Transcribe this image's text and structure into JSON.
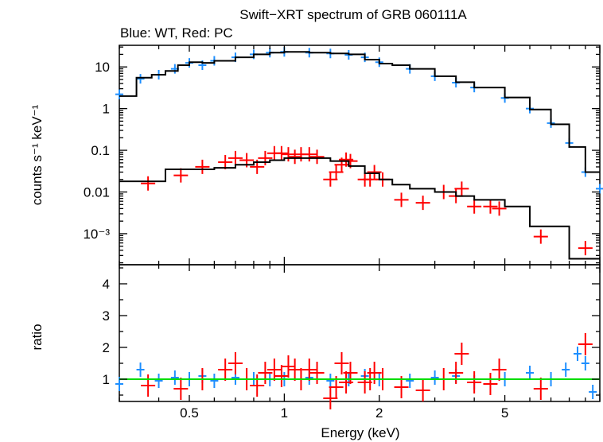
{
  "chart_data": [
    {
      "type": "scatter",
      "panel": "spectrum",
      "title": "Swift−XRT spectrum of GRB 060111A",
      "subtitle": "Blue: WT, Red: PC",
      "xlabel": "",
      "ylabel": "counts s⁻¹ keV⁻¹",
      "x_scale": "log",
      "y_scale": "log",
      "xlim": [
        0.3,
        10
      ],
      "ylim": [
        0.00018,
        33
      ],
      "x_ticks": [
        0.5,
        1,
        2,
        5
      ],
      "y_ticks": [
        {
          "value": 10,
          "label": "10"
        },
        {
          "value": 1,
          "label": "1"
        },
        {
          "value": 0.1,
          "label": "0.1"
        },
        {
          "value": 0.01,
          "label": "0.01"
        },
        {
          "value": 0.001,
          "label": "10⁻³"
        }
      ],
      "series": [
        {
          "color": "#1e8fff",
          "x": [
            0.3,
            0.35,
            0.4,
            0.45,
            0.5,
            0.55,
            0.6,
            0.7,
            0.8,
            0.9,
            1.0,
            1.2,
            1.4,
            1.6,
            1.8,
            2.0,
            2.5,
            3.0,
            3.5,
            4.0,
            5.0,
            6.0,
            7.0,
            8.0,
            9.0,
            10.0
          ],
          "y": [
            2.2,
            5.2,
            6.5,
            9.0,
            12.5,
            11.0,
            14.0,
            17.0,
            20.0,
            22.0,
            23.0,
            22.0,
            21.0,
            19.5,
            17.0,
            13.0,
            9.0,
            6.0,
            4.2,
            3.2,
            1.8,
            1.0,
            0.45,
            0.15,
            0.03,
            0.012
          ]
        },
        {
          "color": "#000000",
          "role": "model WT",
          "x": [
            0.3,
            0.34,
            0.38,
            0.42,
            0.46,
            0.5,
            0.55,
            0.6,
            0.7,
            0.8,
            0.9,
            1.0,
            1.2,
            1.4,
            1.6,
            1.8,
            2.0,
            2.2,
            2.5,
            3.0,
            3.5,
            4.0,
            5.0,
            6.0,
            7.0,
            8.0,
            9.0,
            10.0
          ],
          "y": [
            2.0,
            5.5,
            6.5,
            8.0,
            11.0,
            13.0,
            12.5,
            14.0,
            17.0,
            20.0,
            22.0,
            23.0,
            22.0,
            21.0,
            20.0,
            15.0,
            12.0,
            11.0,
            9.0,
            6.0,
            4.3,
            3.2,
            1.85,
            0.95,
            0.42,
            0.12,
            0.03,
            0.012
          ]
        },
        {
          "color": "#ff0000",
          "x": [
            0.37,
            0.47,
            0.55,
            0.65,
            0.7,
            0.76,
            0.82,
            0.87,
            0.93,
            0.98,
            1.03,
            1.08,
            1.13,
            1.2,
            1.27,
            1.4,
            1.46,
            1.52,
            1.57,
            1.62,
            1.8,
            1.87,
            1.93,
            2.05,
            2.35,
            2.75,
            3.2,
            3.5,
            3.65,
            4.0,
            4.5,
            4.8,
            6.5,
            9.0
          ],
          "y": [
            0.016,
            0.025,
            0.04,
            0.052,
            0.065,
            0.058,
            0.04,
            0.065,
            0.085,
            0.085,
            0.08,
            0.07,
            0.08,
            0.08,
            0.07,
            0.02,
            0.03,
            0.045,
            0.06,
            0.055,
            0.02,
            0.02,
            0.03,
            0.02,
            0.0065,
            0.0055,
            0.01,
            0.008,
            0.012,
            0.0045,
            0.0045,
            0.004,
            0.00085,
            0.00045
          ]
        },
        {
          "color": "#000000",
          "role": "model PC",
          "x": [
            0.3,
            0.4,
            0.42,
            0.5,
            0.6,
            0.7,
            0.8,
            0.9,
            1.0,
            1.2,
            1.4,
            1.6,
            1.8,
            2.0,
            2.2,
            2.5,
            3.0,
            3.5,
            4.0,
            5.0,
            6.0,
            8.0,
            10.0
          ],
          "y": [
            0.018,
            0.018,
            0.035,
            0.035,
            0.038,
            0.045,
            0.052,
            0.058,
            0.065,
            0.065,
            0.055,
            0.042,
            0.028,
            0.02,
            0.015,
            0.012,
            0.01,
            0.008,
            0.0065,
            0.0045,
            0.0015,
            0.00025,
            0.00025
          ]
        }
      ]
    },
    {
      "type": "scatter",
      "panel": "ratio",
      "xlabel": "Energy (keV)",
      "ylabel": "ratio",
      "x_scale": "log",
      "y_scale": "linear",
      "xlim": [
        0.3,
        10
      ],
      "ylim": [
        0.3,
        4.6
      ],
      "x_ticks": [
        {
          "value": 0.5,
          "label": "0.5"
        },
        {
          "value": 1,
          "label": "1"
        },
        {
          "value": 2,
          "label": "2"
        },
        {
          "value": 5,
          "label": "5"
        }
      ],
      "y_ticks": [
        1,
        2,
        3,
        4
      ],
      "reference_line": {
        "y": 1,
        "color": "#00dd00"
      },
      "series": [
        {
          "color": "#1e8fff",
          "x": [
            0.3,
            0.35,
            0.4,
            0.45,
            0.5,
            0.55,
            0.6,
            0.7,
            0.8,
            0.9,
            1.0,
            1.2,
            1.4,
            1.6,
            1.8,
            2.0,
            2.5,
            3.0,
            3.5,
            4.0,
            5.0,
            6.0,
            7.0,
            7.8,
            8.5,
            9.0,
            9.5
          ],
          "y": [
            0.85,
            1.3,
            0.95,
            1.05,
            1.0,
            1.1,
            0.95,
            1.05,
            1.0,
            1.0,
            1.0,
            1.05,
            0.95,
            1.0,
            1.1,
            1.0,
            0.95,
            1.05,
            1.1,
            0.9,
            1.0,
            1.2,
            1.0,
            1.3,
            1.8,
            1.5,
            0.6
          ]
        },
        {
          "color": "#ff0000",
          "x": [
            0.37,
            0.47,
            0.55,
            0.65,
            0.7,
            0.76,
            0.82,
            0.87,
            0.93,
            0.98,
            1.03,
            1.08,
            1.13,
            1.2,
            1.27,
            1.4,
            1.46,
            1.52,
            1.57,
            1.62,
            1.8,
            1.87,
            1.93,
            2.05,
            2.35,
            2.75,
            3.2,
            3.5,
            3.65,
            4.0,
            4.5,
            4.8,
            6.5,
            9.0
          ],
          "y": [
            0.8,
            0.7,
            1.0,
            1.3,
            1.5,
            1.0,
            0.8,
            1.2,
            1.3,
            1.1,
            1.4,
            1.3,
            1.0,
            1.3,
            1.2,
            0.4,
            0.75,
            1.5,
            0.9,
            1.2,
            0.9,
            1.0,
            1.2,
            1.0,
            0.75,
            0.65,
            1.0,
            1.2,
            1.8,
            0.9,
            0.85,
            1.3,
            0.7,
            2.1
          ]
        }
      ]
    }
  ]
}
